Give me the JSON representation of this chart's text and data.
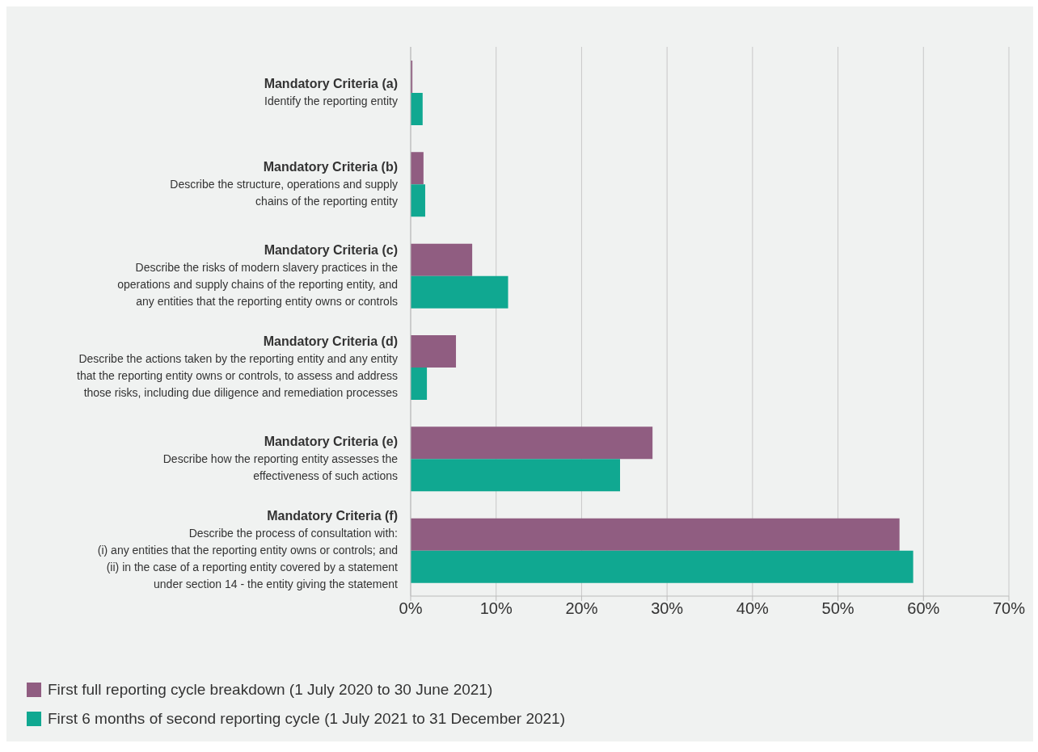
{
  "chart_data": {
    "type": "bar",
    "orientation": "horizontal",
    "categories": [
      "Mandatory Criteria (a)\nIdentify the reporting entity",
      "Mandatory Criteria (b)\nDescribe the structure, operations and supply\nchains of the reporting entity",
      "Mandatory Criteria (c)\nDescribe the risks of modern slavery practices in the\noperations and supply chains of the reporting entity, and\nany entities that the reporting entity owns or controls",
      "Mandatory Criteria (d)\nDescribe the actions taken by the reporting entity and any entity\nthat the reporting entity owns or controls, to assess and address\nthose risks, including due diligence and remediation processes",
      "Mandatory Criteria (e)\nDescribe how the reporting entity assesses the\neffectiveness of such actions",
      "Mandatory Criteria (f)\nDescribe the process of consultation with:\n(i) any entities that the reporting entity owns or controls; and\n(ii) in the case of a reporting entity covered by a statement\nunder section 14 - the entity giving the statement"
    ],
    "series": [
      {
        "name": "First full reporting cycle breakdown (1 July 2020 to 30 June 2021)",
        "color": "#905d81",
        "values": [
          0.2,
          1.5,
          7.2,
          5.3,
          28.3,
          57.2
        ]
      },
      {
        "name": "First 6 months of second reporting cycle (1 July 2021 to 31 December 2021)",
        "color": "#10a891",
        "values": [
          1.4,
          1.7,
          11.4,
          1.9,
          24.5,
          58.8
        ]
      }
    ],
    "xlim": [
      0,
      70
    ],
    "xticks": [
      {
        "value": 0,
        "label": "0%"
      },
      {
        "value": 10,
        "label": "10%"
      },
      {
        "value": 20,
        "label": "20%"
      },
      {
        "value": 30,
        "label": "30%"
      },
      {
        "value": 40,
        "label": "40%"
      },
      {
        "value": 50,
        "label": "50%"
      },
      {
        "value": 60,
        "label": "60%"
      },
      {
        "value": 70,
        "label": "70%"
      }
    ],
    "grid": "x",
    "legend": "bottom left"
  }
}
